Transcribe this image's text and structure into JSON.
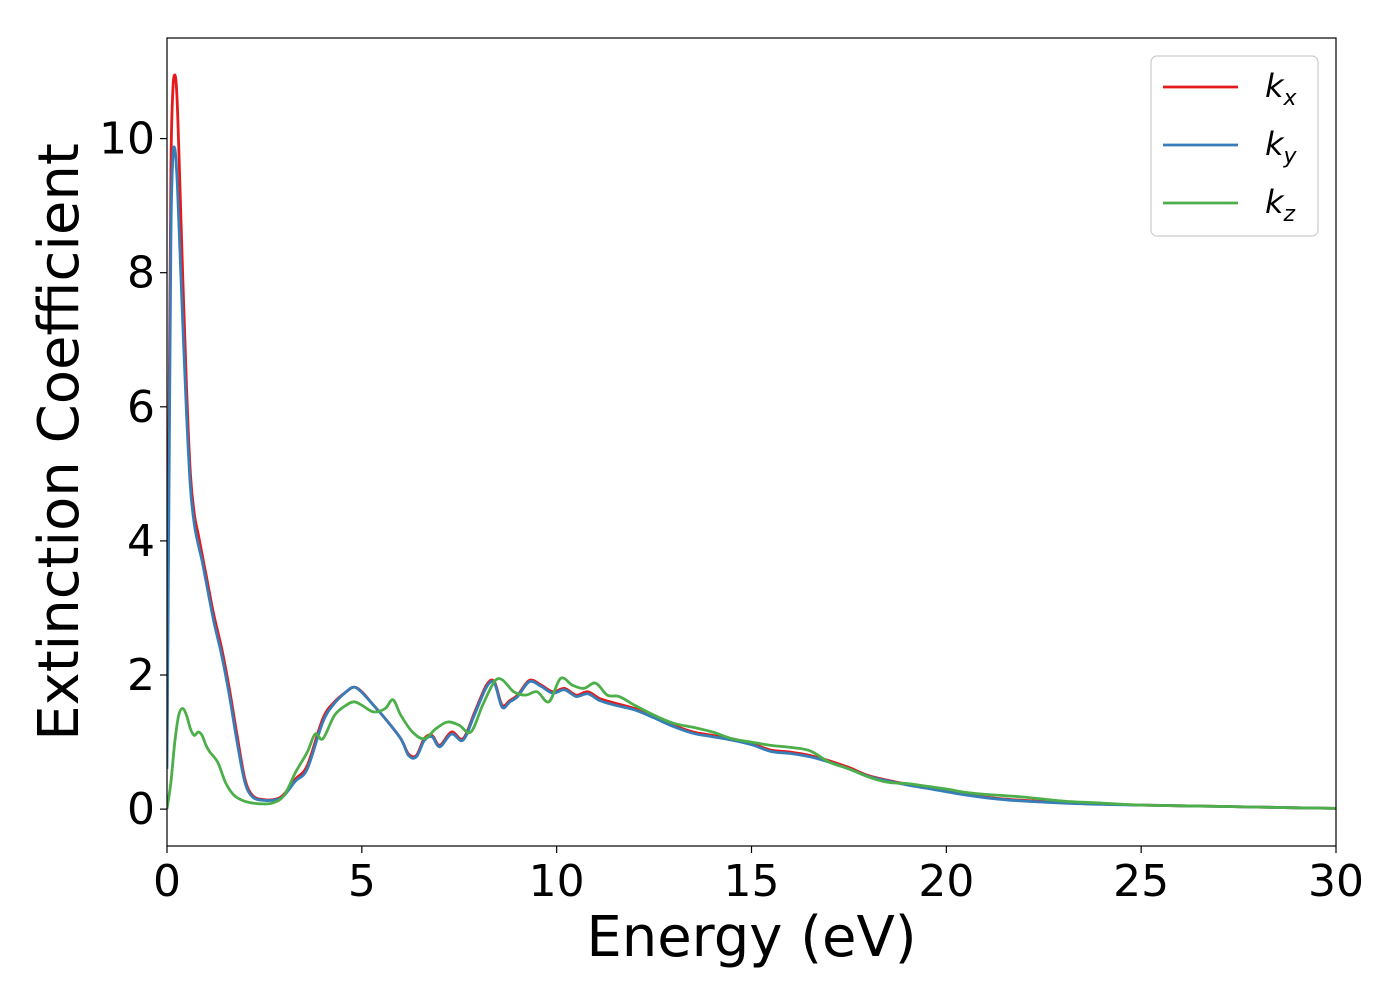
{
  "chart_data": {
    "type": "line",
    "title": "",
    "xlabel": "Energy (eV)",
    "ylabel": "Extinction Coefficient",
    "xlim": [
      0,
      30
    ],
    "ylim": [
      -0.55,
      11.5
    ],
    "xticks": [
      0,
      5,
      10,
      15,
      20,
      25,
      30
    ],
    "yticks": [
      0,
      2,
      4,
      6,
      8,
      10
    ],
    "grid": false,
    "legend_position": "top-right",
    "series": [
      {
        "name": "k",
        "subscript": "x",
        "color": "#e41a1c",
        "x": [
          0,
          0.05,
          0.1,
          0.15,
          0.2,
          0.25,
          0.3,
          0.4,
          0.5,
          0.6,
          0.7,
          0.8,
          0.9,
          1.0,
          1.2,
          1.4,
          1.6,
          1.8,
          2.0,
          2.2,
          2.5,
          2.8,
          3.0,
          3.3,
          3.6,
          4.0,
          4.3,
          4.6,
          4.8,
          5.0,
          5.3,
          5.6,
          6.0,
          6.2,
          6.4,
          6.6,
          6.8,
          7.0,
          7.3,
          7.6,
          7.9,
          8.2,
          8.4,
          8.6,
          8.8,
          9.0,
          9.3,
          9.6,
          9.9,
          10.2,
          10.5,
          10.8,
          11.1,
          11.5,
          12.0,
          12.5,
          13.0,
          13.5,
          14.0,
          14.5,
          15.0,
          15.5,
          16.0,
          16.5,
          17.0,
          17.5,
          18.0,
          18.5,
          19.0,
          19.5,
          20.0,
          20.5,
          21.0,
          21.5,
          22.0,
          23.0,
          24.0,
          25.0,
          26.0,
          27.0,
          28.0,
          29.0,
          30.0
        ],
        "y": [
          0.8,
          5.5,
          9.5,
          10.7,
          10.95,
          10.7,
          9.9,
          8.0,
          6.3,
          5.0,
          4.4,
          4.1,
          3.8,
          3.5,
          2.9,
          2.4,
          1.8,
          1.1,
          0.45,
          0.2,
          0.14,
          0.15,
          0.22,
          0.45,
          0.65,
          1.35,
          1.6,
          1.75,
          1.82,
          1.75,
          1.55,
          1.35,
          1.05,
          0.82,
          0.8,
          1.05,
          1.1,
          0.95,
          1.15,
          1.05,
          1.45,
          1.85,
          1.9,
          1.55,
          1.62,
          1.7,
          1.92,
          1.85,
          1.75,
          1.8,
          1.7,
          1.75,
          1.65,
          1.58,
          1.5,
          1.38,
          1.25,
          1.15,
          1.1,
          1.05,
          0.98,
          0.88,
          0.85,
          0.8,
          0.72,
          0.62,
          0.5,
          0.43,
          0.37,
          0.32,
          0.27,
          0.22,
          0.18,
          0.15,
          0.13,
          0.1,
          0.08,
          0.06,
          0.05,
          0.04,
          0.03,
          0.02,
          0.01
        ]
      },
      {
        "name": "k",
        "subscript": "y",
        "color": "#377eb8",
        "x": [
          0,
          0.05,
          0.1,
          0.15,
          0.2,
          0.25,
          0.3,
          0.4,
          0.5,
          0.6,
          0.7,
          0.8,
          0.9,
          1.0,
          1.2,
          1.4,
          1.6,
          1.8,
          2.0,
          2.2,
          2.5,
          2.8,
          3.0,
          3.3,
          3.6,
          4.0,
          4.3,
          4.6,
          4.8,
          5.0,
          5.3,
          5.6,
          6.0,
          6.2,
          6.4,
          6.6,
          6.8,
          7.0,
          7.3,
          7.6,
          7.9,
          8.2,
          8.4,
          8.6,
          8.8,
          9.0,
          9.3,
          9.6,
          9.9,
          10.2,
          10.5,
          10.8,
          11.1,
          11.5,
          12.0,
          12.5,
          13.0,
          13.5,
          14.0,
          14.5,
          15.0,
          15.5,
          16.0,
          16.5,
          17.0,
          17.5,
          18.0,
          18.5,
          19.0,
          19.5,
          20.0,
          20.5,
          21.0,
          21.5,
          22.0,
          23.0,
          24.0,
          25.0,
          26.0,
          27.0,
          28.0,
          29.0,
          30.0
        ],
        "y": [
          0.6,
          4.5,
          8.5,
          9.7,
          9.85,
          9.5,
          8.8,
          7.3,
          5.9,
          4.8,
          4.25,
          3.95,
          3.7,
          3.4,
          2.8,
          2.3,
          1.7,
          1.0,
          0.4,
          0.18,
          0.13,
          0.14,
          0.2,
          0.42,
          0.6,
          1.3,
          1.58,
          1.75,
          1.82,
          1.74,
          1.55,
          1.35,
          1.05,
          0.8,
          0.78,
          1.02,
          1.08,
          0.93,
          1.12,
          1.03,
          1.42,
          1.82,
          1.88,
          1.52,
          1.6,
          1.68,
          1.9,
          1.83,
          1.73,
          1.78,
          1.68,
          1.72,
          1.62,
          1.55,
          1.48,
          1.36,
          1.23,
          1.13,
          1.08,
          1.03,
          0.96,
          0.86,
          0.83,
          0.78,
          0.7,
          0.6,
          0.49,
          0.42,
          0.36,
          0.31,
          0.26,
          0.21,
          0.17,
          0.14,
          0.12,
          0.09,
          0.07,
          0.06,
          0.05,
          0.04,
          0.03,
          0.02,
          0.01
        ]
      },
      {
        "name": "k",
        "subscript": "z",
        "color": "#4daf4a",
        "x": [
          0,
          0.1,
          0.2,
          0.3,
          0.4,
          0.5,
          0.6,
          0.7,
          0.8,
          0.9,
          1.0,
          1.1,
          1.3,
          1.5,
          1.7,
          1.9,
          2.1,
          2.4,
          2.7,
          3.0,
          3.3,
          3.6,
          3.8,
          4.0,
          4.3,
          4.6,
          4.8,
          5.0,
          5.3,
          5.6,
          5.8,
          6.0,
          6.3,
          6.6,
          6.9,
          7.2,
          7.5,
          7.8,
          8.1,
          8.4,
          8.6,
          8.9,
          9.2,
          9.5,
          9.8,
          10.1,
          10.4,
          10.7,
          11.0,
          11.3,
          11.6,
          12.0,
          12.5,
          13.0,
          13.5,
          14.0,
          14.5,
          15.0,
          15.5,
          16.0,
          16.5,
          17.0,
          17.5,
          18.0,
          18.5,
          19.0,
          19.5,
          20.0,
          20.5,
          21.0,
          21.5,
          22.0,
          23.0,
          24.0,
          25.0,
          26.0,
          27.0,
          28.0,
          29.0,
          30.0
        ],
        "y": [
          0.0,
          0.4,
          1.0,
          1.4,
          1.5,
          1.4,
          1.2,
          1.1,
          1.15,
          1.1,
          0.95,
          0.85,
          0.7,
          0.4,
          0.22,
          0.14,
          0.1,
          0.08,
          0.09,
          0.2,
          0.55,
          0.85,
          1.12,
          1.05,
          1.4,
          1.55,
          1.6,
          1.55,
          1.45,
          1.5,
          1.63,
          1.4,
          1.15,
          1.05,
          1.2,
          1.3,
          1.25,
          1.15,
          1.55,
          1.9,
          1.93,
          1.75,
          1.7,
          1.75,
          1.6,
          1.95,
          1.85,
          1.8,
          1.88,
          1.7,
          1.68,
          1.55,
          1.4,
          1.28,
          1.22,
          1.15,
          1.05,
          1.0,
          0.95,
          0.92,
          0.87,
          0.7,
          0.6,
          0.48,
          0.4,
          0.38,
          0.34,
          0.3,
          0.25,
          0.22,
          0.2,
          0.18,
          0.12,
          0.09,
          0.06,
          0.05,
          0.04,
          0.03,
          0.02,
          0.01
        ]
      }
    ]
  }
}
